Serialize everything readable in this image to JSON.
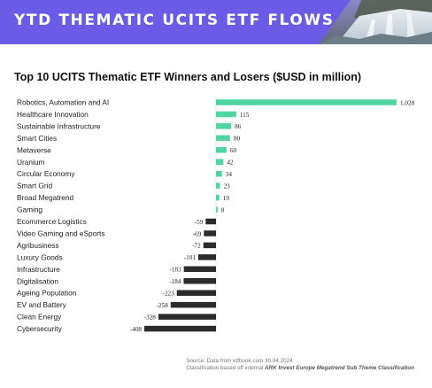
{
  "banner": {
    "title": "YTD THEMATIC UCITS ETF FLOWS"
  },
  "colors": {
    "banner": "#6b5ce7",
    "positive": "#4fd6a0",
    "negative": "#2b2b2b"
  },
  "chart_data": {
    "type": "bar",
    "orientation": "horizontal",
    "title": "Top 10 UCITS Thematic ETF Winners and Losers ($USD in million)",
    "categories": [
      "Robotics, Automation and AI",
      "Healthcare Innovation",
      "Sustainable Infrastructure",
      "Smart Cities",
      "Metaverse",
      "Uranium",
      "Circular Economy",
      "Smart Grid",
      "Broad Megatrend",
      "Gaming",
      "Ecommerce Logistics",
      "Video Gaming and eSports",
      "Agribusiness",
      "Luxury Goods",
      "Infrastructure",
      "Digitalisation",
      "Ageing Population",
      "EV and Battery",
      "Clean Energy",
      "Cybersecurity"
    ],
    "values": [
      1028,
      115,
      86,
      80,
      60,
      42,
      34,
      23,
      19,
      8,
      -59,
      -69,
      -72,
      -101,
      -183,
      -184,
      -223,
      -258,
      -328,
      -408
    ],
    "labels": [
      "1,028",
      "115",
      "86",
      "80",
      "60",
      "42",
      "34",
      "23",
      "19",
      "8",
      "-59",
      "-69",
      "-72",
      "-101",
      "-183",
      "-184",
      "-223",
      "-258",
      "-328",
      "-408"
    ],
    "xlim": [
      -408,
      1028
    ],
    "grid": false,
    "legend": "none"
  },
  "footer": {
    "source": "Source: Data from etfbook.com 30.04.2024",
    "classification_prefix": "Classification based off internal",
    "classification_emph": "ARK Invest Europe Megatrend Sub Theme Classification"
  }
}
